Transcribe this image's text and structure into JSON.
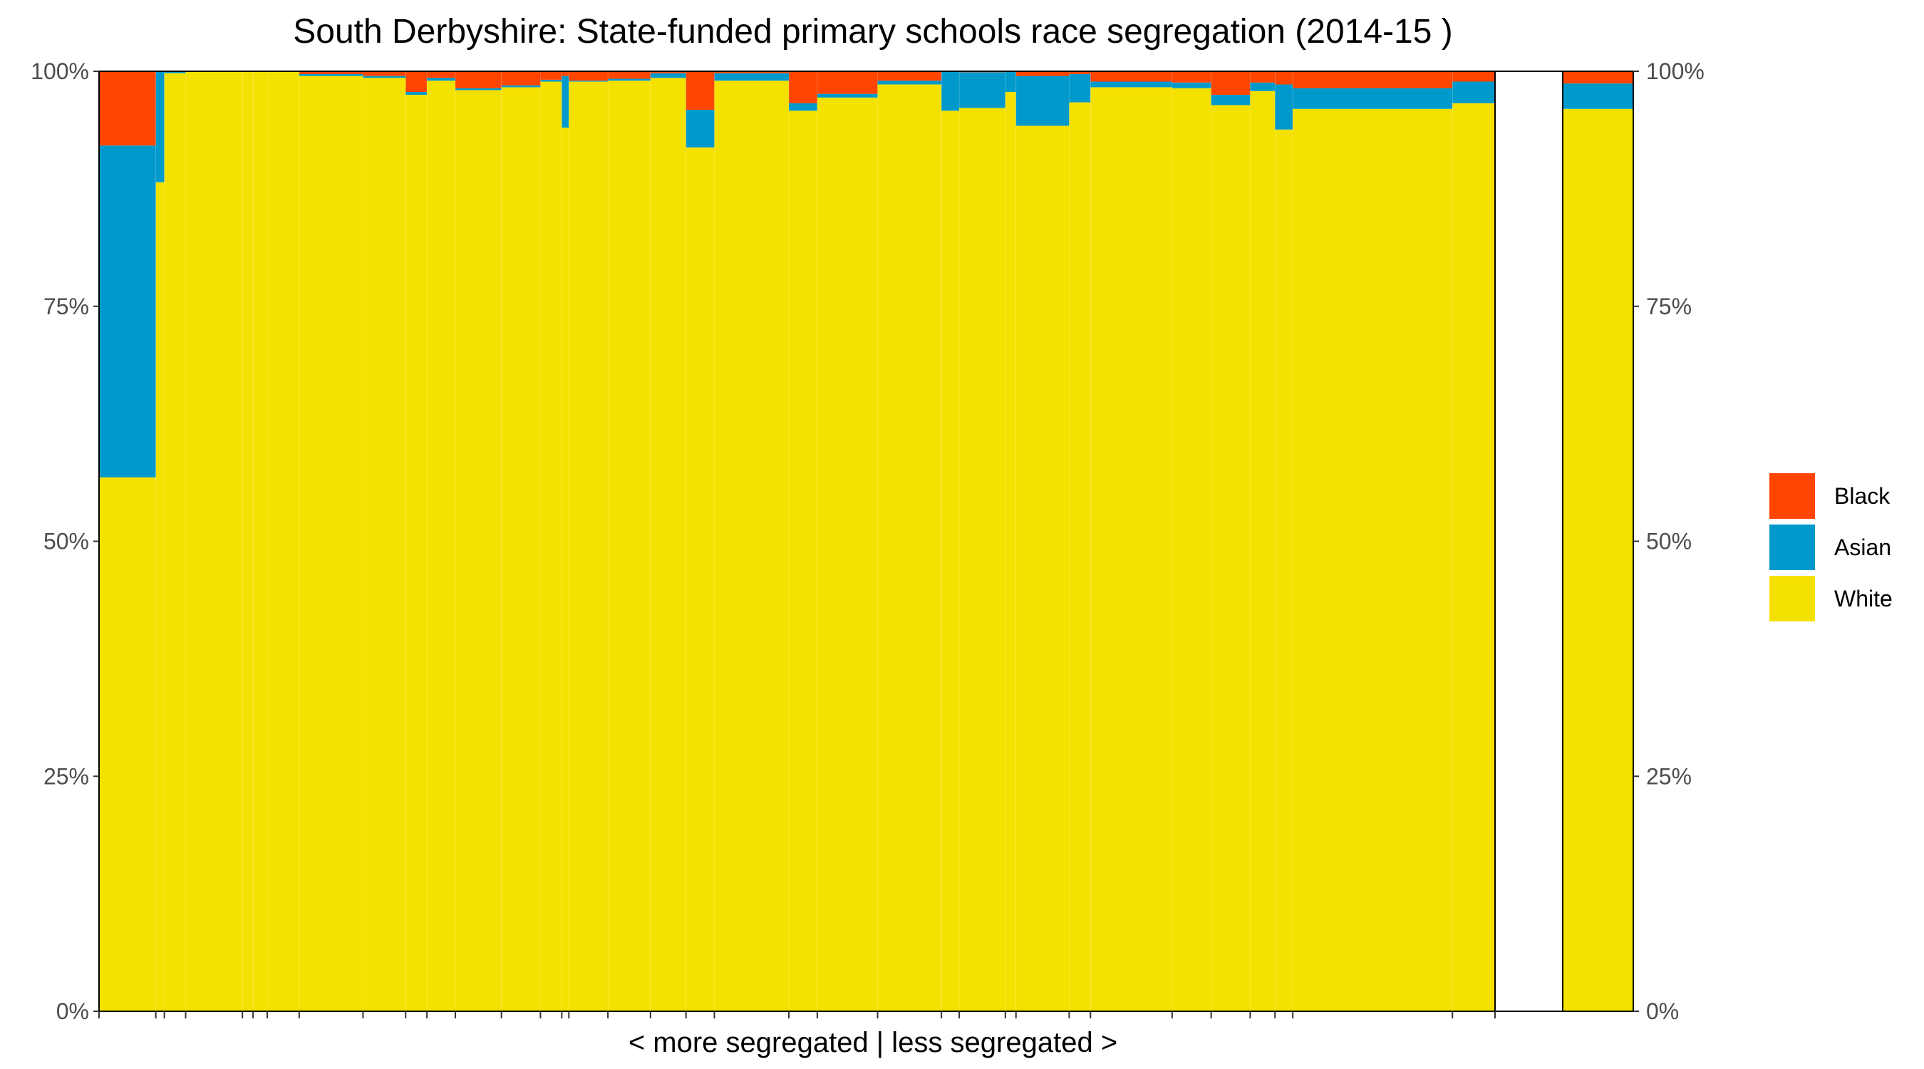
{
  "colors": {
    "Black": "#FF4500",
    "Asian": "#0099CC",
    "White": "#F5E100"
  },
  "chart_data": {
    "type": "bar",
    "subtype": "stacked-percent-variable-width",
    "title": "South Derbyshire: State-funded primary schools race segregation (2014-15 )",
    "xlabel": "< more segregated | less segregated >",
    "ylabel": "",
    "ylim": [
      0,
      100
    ],
    "y_ticks": [
      "0%",
      "25%",
      "50%",
      "75%",
      "100%"
    ],
    "y_axis_sides": [
      "left",
      "right"
    ],
    "grid": false,
    "legend": {
      "position": "right",
      "entries": [
        "Black",
        "Asian",
        "White"
      ]
    },
    "series_order": [
      "White",
      "Asian",
      "Black"
    ],
    "schools": [
      {
        "width": 8,
        "White": 56.8,
        "Asian": 35.3,
        "Black": 7.9
      },
      {
        "width": 1.2,
        "White": 88.2,
        "Asian": 11.8,
        "Black": 0
      },
      {
        "width": 3,
        "White": 99.8,
        "Asian": 0.2,
        "Black": 0
      },
      {
        "width": 8,
        "White": 100,
        "Asian": 0,
        "Black": 0
      },
      {
        "width": 1.5,
        "White": 100,
        "Asian": 0,
        "Black": 0
      },
      {
        "width": 2,
        "White": 100,
        "Asian": 0,
        "Black": 0
      },
      {
        "width": 4.5,
        "White": 100,
        "Asian": 0,
        "Black": 0
      },
      {
        "width": 9,
        "White": 99.5,
        "Asian": 0.2,
        "Black": 0.3
      },
      {
        "width": 6,
        "White": 99.3,
        "Asian": 0.2,
        "Black": 0.5
      },
      {
        "width": 3,
        "White": 97.5,
        "Asian": 0.3,
        "Black": 2.2
      },
      {
        "width": 4,
        "White": 99.0,
        "Asian": 0.3,
        "Black": 0.7
      },
      {
        "width": 6.5,
        "White": 98.0,
        "Asian": 0.2,
        "Black": 1.8
      },
      {
        "width": 5.5,
        "White": 98.3,
        "Asian": 0.2,
        "Black": 1.5
      },
      {
        "width": 3,
        "White": 98.9,
        "Asian": 0.2,
        "Black": 0.9
      },
      {
        "width": 1,
        "White": 94.0,
        "Asian": 5.5,
        "Black": 0.5
      },
      {
        "width": 5.5,
        "White": 98.9,
        "Asian": 0.1,
        "Black": 1.0
      },
      {
        "width": 6,
        "White": 99.0,
        "Asian": 0.2,
        "Black": 0.8
      },
      {
        "width": 5,
        "White": 99.3,
        "Asian": 0.5,
        "Black": 0.2
      },
      {
        "width": 4,
        "White": 91.9,
        "Asian": 4.0,
        "Black": 4.1
      },
      {
        "width": 10.5,
        "White": 99.0,
        "Asian": 0.8,
        "Black": 0.2
      },
      {
        "width": 4,
        "White": 95.8,
        "Asian": 0.8,
        "Black": 3.4
      },
      {
        "width": 8.5,
        "White": 97.2,
        "Asian": 0.4,
        "Black": 2.4
      },
      {
        "width": 9,
        "White": 98.6,
        "Asian": 0.4,
        "Black": 1.0
      },
      {
        "width": 2.5,
        "White": 95.8,
        "Asian": 4.2,
        "Black": 0
      },
      {
        "width": 6.5,
        "White": 96.1,
        "Asian": 3.8,
        "Black": 0.1
      },
      {
        "width": 1.5,
        "White": 97.8,
        "Asian": 2.2,
        "Black": 0
      },
      {
        "width": 7.5,
        "White": 94.2,
        "Asian": 5.3,
        "Black": 0.5
      },
      {
        "width": 3,
        "White": 96.7,
        "Asian": 3.0,
        "Black": 0.3
      },
      {
        "width": 11.5,
        "White": 98.3,
        "Asian": 0.6,
        "Black": 1.1
      },
      {
        "width": 5.5,
        "White": 98.2,
        "Asian": 0.6,
        "Black": 1.2
      },
      {
        "width": 5.5,
        "White": 96.4,
        "Asian": 1.1,
        "Black": 2.5
      },
      {
        "width": 3.5,
        "White": 97.9,
        "Asian": 0.9,
        "Black": 1.2
      },
      {
        "width": 2.5,
        "White": 93.8,
        "Asian": 4.8,
        "Black": 1.4
      },
      {
        "width": 22.5,
        "White": 96.0,
        "Asian": 2.2,
        "Black": 1.8
      },
      {
        "width": 6,
        "White": 96.6,
        "Asian": 2.3,
        "Black": 1.1
      }
    ],
    "overall": {
      "White": 96.0,
      "Asian": 2.7,
      "Black": 1.3
    }
  }
}
